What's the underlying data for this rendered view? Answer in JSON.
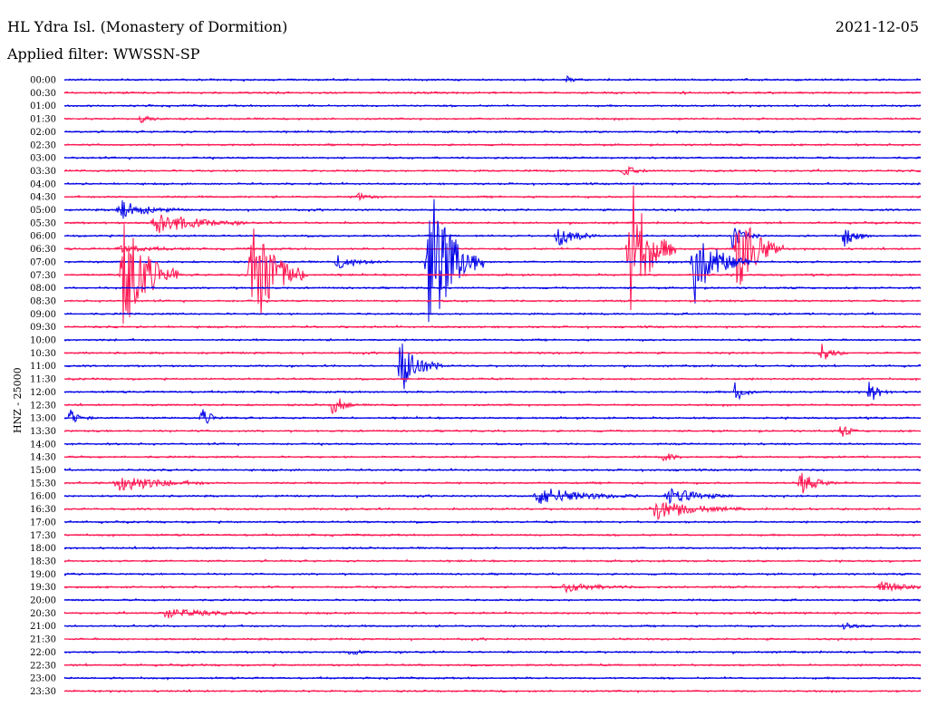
{
  "header": {
    "station": "HL Ydra Isl. (Monastery of Dormition)",
    "date": "2021-12-05",
    "filter": "Applied filter: WWSSN-SP",
    "channel": "HNZ - 25000"
  },
  "colors": {
    "odd": "#0000e6",
    "even": "#ff1450"
  },
  "chart_data": {
    "type": "line",
    "title": "HL Ydra Isl. (Monastery of Dormition)",
    "ylabel": "HNZ - 25000",
    "row_interval_minutes": 30,
    "rows": [
      {
        "t": "00:00",
        "c": "#0000e6"
      },
      {
        "t": "00:30",
        "c": "#ff1450"
      },
      {
        "t": "01:00",
        "c": "#0000e6"
      },
      {
        "t": "01:30",
        "c": "#ff1450"
      },
      {
        "t": "02:00",
        "c": "#0000e6"
      },
      {
        "t": "02:30",
        "c": "#ff1450"
      },
      {
        "t": "03:00",
        "c": "#0000e6"
      },
      {
        "t": "03:30",
        "c": "#ff1450"
      },
      {
        "t": "04:00",
        "c": "#0000e6"
      },
      {
        "t": "04:30",
        "c": "#ff1450"
      },
      {
        "t": "05:00",
        "c": "#0000e6"
      },
      {
        "t": "05:30",
        "c": "#ff1450"
      },
      {
        "t": "06:00",
        "c": "#0000e6"
      },
      {
        "t": "06:30",
        "c": "#ff1450"
      },
      {
        "t": "07:00",
        "c": "#0000e6"
      },
      {
        "t": "07:30",
        "c": "#ff1450"
      },
      {
        "t": "08:00",
        "c": "#0000e6"
      },
      {
        "t": "08:30",
        "c": "#ff1450"
      },
      {
        "t": "09:00",
        "c": "#0000e6"
      },
      {
        "t": "09:30",
        "c": "#ff1450"
      },
      {
        "t": "10:00",
        "c": "#0000e6"
      },
      {
        "t": "10:30",
        "c": "#ff1450"
      },
      {
        "t": "11:00",
        "c": "#0000e6"
      },
      {
        "t": "11:30",
        "c": "#ff1450"
      },
      {
        "t": "12:00",
        "c": "#0000e6"
      },
      {
        "t": "12:30",
        "c": "#ff1450"
      },
      {
        "t": "13:00",
        "c": "#0000e6"
      },
      {
        "t": "13:30",
        "c": "#ff1450"
      },
      {
        "t": "14:00",
        "c": "#0000e6"
      },
      {
        "t": "14:30",
        "c": "#ff1450"
      },
      {
        "t": "15:00",
        "c": "#0000e6"
      },
      {
        "t": "15:30",
        "c": "#ff1450"
      },
      {
        "t": "16:00",
        "c": "#0000e6"
      },
      {
        "t": "16:30",
        "c": "#ff1450"
      },
      {
        "t": "17:00",
        "c": "#0000e6"
      },
      {
        "t": "17:30",
        "c": "#ff1450"
      },
      {
        "t": "18:00",
        "c": "#0000e6"
      },
      {
        "t": "18:30",
        "c": "#ff1450"
      },
      {
        "t": "19:00",
        "c": "#0000e6"
      },
      {
        "t": "19:30",
        "c": "#ff1450"
      },
      {
        "t": "20:00",
        "c": "#0000e6"
      },
      {
        "t": "20:30",
        "c": "#ff1450"
      },
      {
        "t": "21:00",
        "c": "#0000e6"
      },
      {
        "t": "21:30",
        "c": "#ff1450"
      },
      {
        "t": "22:00",
        "c": "#0000e6"
      },
      {
        "t": "22:30",
        "c": "#ff1450"
      },
      {
        "t": "23:00",
        "c": "#0000e6"
      },
      {
        "t": "23:30",
        "c": "#ff1450"
      }
    ],
    "events": [
      {
        "row": 0,
        "min": 17.6,
        "amp": 0.25,
        "dur": 0.4
      },
      {
        "row": 3,
        "min": 2.7,
        "amp": 0.3,
        "dur": 0.6
      },
      {
        "row": 7,
        "min": 19.6,
        "amp": 0.4,
        "dur": 0.7
      },
      {
        "row": 9,
        "min": 10.2,
        "amp": 0.4,
        "dur": 0.6
      },
      {
        "row": 13,
        "min": 2.0,
        "amp": 0.3,
        "dur": 1.6
      },
      {
        "row": 14,
        "min": 9.6,
        "amp": 0.6,
        "dur": 1.0
      },
      {
        "row": 15,
        "min": 2.1,
        "amp": 6.0,
        "dur": 1.2
      },
      {
        "row": 15,
        "min": 6.6,
        "amp": 6.0,
        "dur": 1.2
      },
      {
        "row": 14,
        "min": 12.8,
        "amp": 7.5,
        "dur": 1.2
      },
      {
        "row": 13,
        "min": 19.8,
        "amp": 7.0,
        "dur": 1.0
      },
      {
        "row": 14,
        "min": 22.1,
        "amp": 3.6,
        "dur": 1.2
      },
      {
        "row": 13,
        "min": 23.6,
        "amp": 4.2,
        "dur": 1.0
      },
      {
        "row": 22,
        "min": 11.8,
        "amp": 2.6,
        "dur": 0.9
      },
      {
        "row": 25,
        "min": 9.4,
        "amp": 1.3,
        "dur": 0.5
      },
      {
        "row": 24,
        "min": 28.2,
        "amp": 1.1,
        "dur": 0.5
      },
      {
        "row": 24,
        "min": 23.5,
        "amp": 0.9,
        "dur": 0.5
      },
      {
        "row": 31,
        "min": 2.0,
        "amp": 0.8,
        "dur": 2.0
      },
      {
        "row": 32,
        "min": 16.7,
        "amp": 0.8,
        "dur": 2.2
      },
      {
        "row": 33,
        "min": 20.7,
        "amp": 0.9,
        "dur": 2.0
      },
      {
        "row": 32,
        "min": 21.2,
        "amp": 0.8,
        "dur": 1.4
      },
      {
        "row": 31,
        "min": 25.8,
        "amp": 1.0,
        "dur": 0.8
      },
      {
        "row": 41,
        "min": 3.6,
        "amp": 0.4,
        "dur": 2.2
      },
      {
        "row": 39,
        "min": 17.6,
        "amp": 0.4,
        "dur": 1.6
      },
      {
        "row": 39,
        "min": 28.6,
        "amp": 0.4,
        "dur": 1.4
      },
      {
        "row": 42,
        "min": 27.3,
        "amp": 0.3,
        "dur": 0.5
      },
      {
        "row": 44,
        "min": 10.0,
        "amp": 0.4,
        "dur": 0.4
      },
      {
        "row": 10,
        "min": 2.0,
        "amp": 0.8,
        "dur": 1.4
      },
      {
        "row": 11,
        "min": 3.3,
        "amp": 1.0,
        "dur": 2.0
      },
      {
        "row": 12,
        "min": 17.3,
        "amp": 1.1,
        "dur": 0.9
      },
      {
        "row": 12,
        "min": 23.4,
        "amp": 1.1,
        "dur": 0.6
      },
      {
        "row": 12,
        "min": 27.3,
        "amp": 1.0,
        "dur": 0.6
      },
      {
        "row": 21,
        "min": 26.5,
        "amp": 0.9,
        "dur": 0.6
      },
      {
        "row": 26,
        "min": 4.8,
        "amp": 0.9,
        "dur": 0.5
      },
      {
        "row": 26,
        "min": 0.2,
        "amp": 0.8,
        "dur": 0.5
      },
      {
        "row": 27,
        "min": 27.2,
        "amp": 0.7,
        "dur": 0.4
      },
      {
        "row": 29,
        "min": 21.0,
        "amp": 0.5,
        "dur": 0.5
      }
    ]
  }
}
